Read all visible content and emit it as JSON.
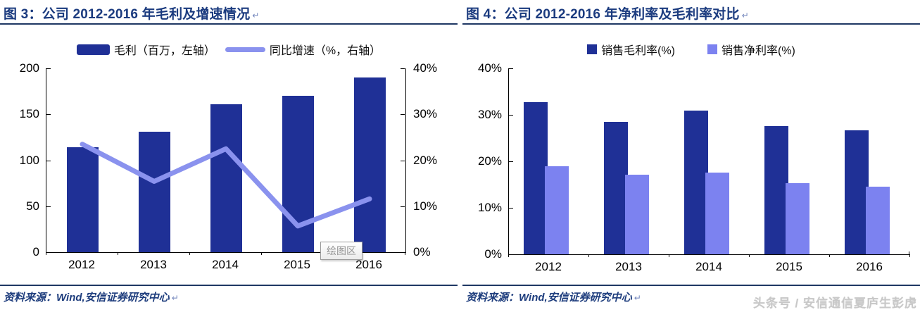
{
  "page": {
    "source_label": "资料来源：Wind,安信证券研究中心",
    "paragraph_mark": "↵",
    "watermark": "头条号 / 安信通信夏庐生彭虎"
  },
  "colors": {
    "dark_blue": "#1F3096",
    "light_purple": "#7C82F0",
    "line_purple": "#8A92EE",
    "title_navy": "#1B3B7F",
    "rule_navy": "#1F3864",
    "watermark_gray": "#C8C8C8"
  },
  "chart_data": [
    {
      "id": "gross-profit-and-growth",
      "type": "bar+line",
      "title": "图 3：公司 2012-2016 年毛利及增速情况",
      "categories": [
        "2012",
        "2013",
        "2014",
        "2015",
        "2016"
      ],
      "series": [
        {
          "name": "毛利（百万，左轴）",
          "type": "bar",
          "axis": "left",
          "color": "#1F3096",
          "values": [
            114,
            131,
            161,
            170,
            190
          ]
        },
        {
          "name": "同比增速（%，右轴）",
          "type": "line",
          "axis": "right",
          "color": "#8A92EE",
          "values": [
            23.5,
            15.4,
            22.5,
            5.7,
            11.6
          ]
        }
      ],
      "left_axis": {
        "min": 0,
        "max": 200,
        "ticks": [
          0,
          50,
          100,
          150,
          200
        ],
        "labels": [
          "0",
          "50",
          "100",
          "150",
          "200"
        ]
      },
      "right_axis": {
        "min": 0,
        "max": 40,
        "ticks": [
          0,
          10,
          20,
          30,
          40
        ],
        "labels": [
          "0%",
          "10%",
          "20%",
          "30%",
          "40%"
        ]
      },
      "legend_position": "top",
      "grid": false,
      "tooltip": "绘图区"
    },
    {
      "id": "margin-comparison",
      "type": "bar",
      "title": "图 4：公司 2012-2016 年净利率及毛利率对比",
      "categories": [
        "2012",
        "2013",
        "2014",
        "2015",
        "2016"
      ],
      "series": [
        {
          "name": "销售毛利率(%)",
          "color": "#1F3096",
          "values": [
            32.8,
            28.5,
            30.9,
            27.6,
            26.7
          ]
        },
        {
          "name": "销售净利率(%)",
          "color": "#7C82F0",
          "values": [
            18.9,
            17.1,
            17.6,
            15.3,
            14.6
          ]
        }
      ],
      "y_axis": {
        "min": 0,
        "max": 40,
        "ticks": [
          0,
          10,
          20,
          30,
          40
        ],
        "labels": [
          "0%",
          "10%",
          "20%",
          "30%",
          "40%"
        ]
      },
      "legend_position": "top",
      "grid": false
    }
  ]
}
